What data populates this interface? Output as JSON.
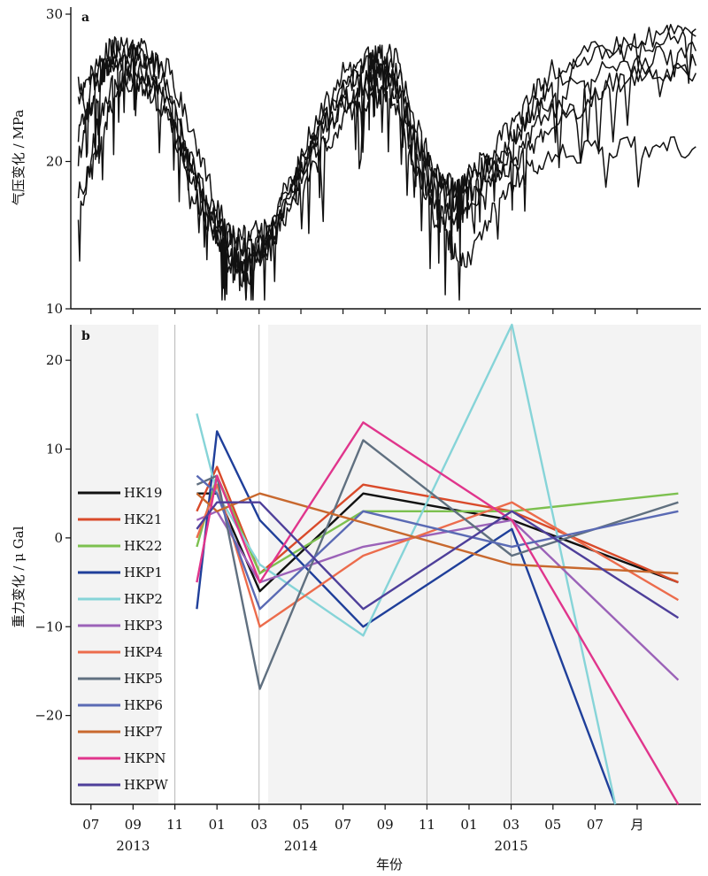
{
  "chart_data": [
    {
      "panel": "a",
      "type": "line",
      "ylabel": "气压变化 / MPa",
      "ylim": [
        10,
        30
      ],
      "xlim": [
        2013.42,
        2015.92
      ],
      "yticks": [
        10,
        20,
        30
      ],
      "grid": false,
      "series": [
        {
          "color": "#111111",
          "x": [
            2013.45,
            2013.5,
            2013.55,
            2013.6,
            2013.7,
            2013.8,
            2013.9,
            2014.0,
            2014.05,
            2014.1,
            2014.2,
            2014.3,
            2014.4,
            2014.5,
            2014.6,
            2014.65,
            2014.72,
            2014.8,
            2014.88,
            2014.95,
            2015.0,
            2015.1,
            2015.2,
            2015.3,
            2015.5,
            2015.7,
            2015.9
          ],
          "y": [
            22,
            24,
            26,
            27,
            27,
            26.5,
            22,
            17,
            15,
            14,
            14.5,
            19,
            23,
            26,
            27,
            27.5,
            27,
            22,
            19,
            18,
            19,
            20,
            22,
            25,
            27,
            28,
            29
          ]
        },
        {
          "color": "#111111",
          "x": [
            2013.45,
            2013.5,
            2013.55,
            2013.62,
            2013.7,
            2013.8,
            2013.9,
            2014.0,
            2014.05,
            2014.1,
            2014.2,
            2014.3,
            2014.4,
            2014.5,
            2014.6,
            2014.65,
            2014.72,
            2014.8,
            2014.88,
            2014.95,
            2015.0,
            2015.1,
            2015.2,
            2015.3,
            2015.5,
            2015.7,
            2015.9
          ],
          "y": [
            20,
            25,
            27,
            27.5,
            27,
            25,
            20,
            16,
            14,
            13,
            14,
            18,
            22,
            25,
            26.5,
            27,
            26,
            21,
            18,
            17,
            19,
            21,
            23,
            26,
            27.5,
            28.5,
            28.5
          ]
        },
        {
          "color": "#111111",
          "x": [
            2013.45,
            2013.52,
            2013.58,
            2013.65,
            2013.72,
            2013.8,
            2013.9,
            2014.0,
            2014.05,
            2014.12,
            2014.2,
            2014.3,
            2014.4,
            2014.5,
            2014.6,
            2014.65,
            2014.72,
            2014.8,
            2014.88,
            2014.95,
            2015.0,
            2015.1,
            2015.2,
            2015.3,
            2015.5,
            2015.7,
            2015.9
          ],
          "y": [
            16,
            22,
            25,
            26,
            26,
            24,
            18,
            15,
            13,
            12,
            15,
            18,
            21,
            24,
            25.5,
            26,
            25,
            20,
            18,
            18,
            18,
            20,
            22,
            24,
            26,
            27,
            27.5
          ]
        },
        {
          "color": "#111111",
          "x": [
            2013.45,
            2013.5,
            2013.56,
            2013.62,
            2013.7,
            2013.78,
            2013.88,
            2013.95,
            2014.02,
            2014.1,
            2014.2,
            2014.3,
            2014.4,
            2014.5,
            2014.6,
            2014.65,
            2014.72,
            2014.8,
            2014.88,
            2014.95,
            2015.0,
            2015.1,
            2015.2,
            2015.3,
            2015.5,
            2015.7,
            2015.9
          ],
          "y": [
            24,
            26,
            27.5,
            28,
            28,
            26,
            21,
            17,
            14,
            13,
            14,
            17,
            20,
            23,
            24,
            24.5,
            23,
            19,
            17,
            16,
            17,
            19,
            21,
            23,
            25,
            26,
            26.5
          ]
        },
        {
          "color": "#111111",
          "x": [
            2013.45,
            2013.5,
            2013.55,
            2013.62,
            2013.7,
            2013.8,
            2013.9,
            2014.0,
            2014.06,
            2014.12,
            2014.2,
            2014.3,
            2014.4,
            2014.5,
            2014.6,
            2014.65,
            2014.72,
            2014.8,
            2014.88,
            2014.95,
            2015.0,
            2015.1,
            2015.2,
            2015.3,
            2015.5,
            2015.7,
            2015.9
          ],
          "y": [
            25,
            23,
            26,
            26.5,
            26,
            24,
            19,
            15,
            14,
            14,
            15,
            18,
            22,
            25,
            26,
            26.5,
            25,
            21,
            19,
            18,
            18,
            19,
            20,
            22,
            24.5,
            26,
            26
          ]
        },
        {
          "color": "#111111",
          "x": [
            2013.45,
            2013.52,
            2013.58,
            2013.65,
            2013.72,
            2013.8,
            2013.9,
            2014.0,
            2014.06,
            2014.12,
            2014.2,
            2014.3,
            2014.4,
            2014.5,
            2014.6,
            2014.65,
            2014.72,
            2014.8,
            2014.88,
            2014.94,
            2015.0,
            2015.1,
            2015.2,
            2015.3,
            2015.5,
            2015.7,
            2015.9
          ],
          "y": [
            18,
            20,
            24,
            25,
            25,
            23,
            19,
            16,
            15,
            15,
            15.5,
            19,
            22,
            24,
            25,
            25,
            24,
            19,
            16,
            14,
            13,
            17,
            19,
            20,
            21,
            21,
            21
          ]
        }
      ]
    },
    {
      "panel": "b",
      "type": "line",
      "ylabel": "重力变化 / μ Gal",
      "xlabel": "年份",
      "ylim": [
        -30,
        24
      ],
      "xlim": [
        2013.42,
        2015.92
      ],
      "yticks": [
        -20,
        -10,
        0,
        10,
        20
      ],
      "x_tick_labels": [
        "07",
        "09",
        "11",
        "01",
        "03",
        "05",
        "07",
        "09",
        "11",
        "01",
        "03",
        "05",
        "07",
        "月"
      ],
      "year_labels": [
        "2013",
        "2014",
        "2015"
      ],
      "grid": false,
      "legend": "left",
      "series": [
        {
          "name": "HK19",
          "color": "#111111",
          "x": [
            2013.92,
            2014.0,
            2014.17,
            2014.58,
            2015.17,
            2015.83
          ],
          "y": [
            5,
            5,
            -6,
            5,
            2,
            -5
          ]
        },
        {
          "name": "HK21",
          "color": "#d94a2a",
          "x": [
            2013.92,
            2014.0,
            2014.17,
            2014.58,
            2015.17,
            2015.83
          ],
          "y": [
            3,
            8,
            -4,
            6,
            3,
            -5
          ]
        },
        {
          "name": "HK22",
          "color": "#7cc04f",
          "x": [
            2013.92,
            2014.0,
            2014.17,
            2014.58,
            2015.17,
            2015.83
          ],
          "y": [
            -1,
            7,
            -4,
            3,
            3,
            5
          ]
        },
        {
          "name": "HKP1",
          "color": "#1f3f9a",
          "x": [
            2013.92,
            2014.0,
            2014.17,
            2014.58,
            2015.17,
            2015.58
          ],
          "y": [
            -8,
            12,
            2,
            -10,
            1,
            -30
          ]
        },
        {
          "name": "HKP2",
          "color": "#86d4d8",
          "x": [
            2013.92,
            2014.0,
            2014.17,
            2014.58,
            2015.17,
            2015.58
          ],
          "y": [
            14,
            5,
            -3,
            -11,
            24,
            -30
          ]
        },
        {
          "name": "HKP3",
          "color": "#9b62b8",
          "x": [
            2013.92,
            2014.0,
            2014.17,
            2014.58,
            2015.17,
            2015.83
          ],
          "y": [
            2,
            3,
            -5,
            -1,
            2,
            -16
          ]
        },
        {
          "name": "HKP4",
          "color": "#ec6c4c",
          "x": [
            2013.92,
            2014.0,
            2014.17,
            2014.58,
            2015.17,
            2015.83
          ],
          "y": [
            0,
            6,
            -10,
            -2,
            4,
            -7
          ]
        },
        {
          "name": "HKP5",
          "color": "#607080",
          "x": [
            2013.92,
            2014.0,
            2014.17,
            2014.58,
            2015.17,
            2015.83
          ],
          "y": [
            6,
            7,
            -17,
            11,
            -2,
            4
          ]
        },
        {
          "name": "HKP6",
          "color": "#5a6ab4",
          "x": [
            2013.92,
            2014.0,
            2014.17,
            2014.58,
            2015.17,
            2015.83
          ],
          "y": [
            7,
            5,
            -8,
            3,
            -1,
            3
          ]
        },
        {
          "name": "HKP7",
          "color": "#c8682e",
          "x": [
            2013.92,
            2014.0,
            2014.17,
            2015.17,
            2015.83
          ],
          "y": [
            5,
            3,
            5,
            -3,
            -4
          ]
        },
        {
          "name": "HKPN",
          "color": "#e0358c",
          "x": [
            2013.92,
            2014.0,
            2014.17,
            2014.58,
            2015.17,
            2015.83
          ],
          "y": [
            -5,
            7,
            -5,
            13,
            2,
            -30
          ]
        },
        {
          "name": "HKPW",
          "color": "#4e3f9a",
          "x": [
            2013.92,
            2014.0,
            2014.17,
            2014.58,
            2015.17,
            2015.83
          ],
          "y": [
            1,
            4,
            4,
            -8,
            3,
            -9
          ]
        }
      ]
    }
  ],
  "panel_a_tag": "a",
  "panel_b_tag": "b"
}
